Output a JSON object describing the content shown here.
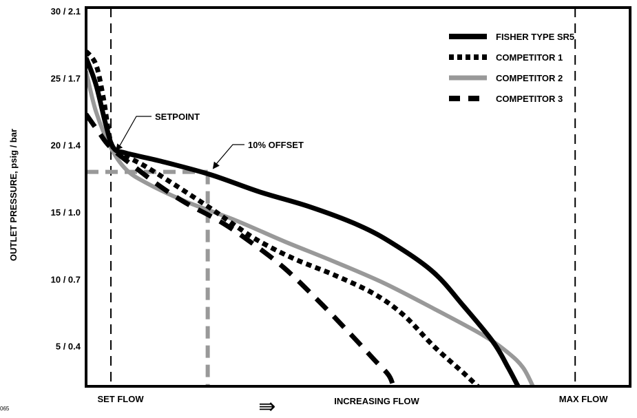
{
  "figure_id": "065",
  "chart_data": {
    "type": "line",
    "xlabel": "INCREASING FLOW",
    "xlabel_arrow": "⇛",
    "ylabel": "OUTLET PRESSURE, psig / bar",
    "xlim": [
      0,
      100
    ],
    "ylim": [
      2,
      30
    ],
    "yticks": [
      {
        "value": 5,
        "label": "5 / 0.4"
      },
      {
        "value": 10,
        "label": "10 / 0.7"
      },
      {
        "value": 15,
        "label": "15 / 1.0"
      },
      {
        "value": 20,
        "label": "20 / 1.4"
      },
      {
        "value": 25,
        "label": "25 / 1.7"
      },
      {
        "value": 30,
        "label": "30 / 2.1"
      }
    ],
    "xticks": [
      {
        "value": 5,
        "label": "SET FLOW"
      },
      {
        "value": 98.5,
        "label": "MAX FLOW"
      }
    ],
    "reference_lines": {
      "set_flow_x": 5,
      "max_flow_x": 98.5,
      "offset_pressure": 18,
      "offset_flow_x": 24.5
    },
    "annotations": [
      {
        "text": "SETPOINT",
        "points_to": {
          "x": 6,
          "y": 19.6
        }
      },
      {
        "text": "10% OFFSET",
        "points_to": {
          "x": 25.5,
          "y": 18
        }
      }
    ],
    "legend_position": "top-right",
    "series": [
      {
        "name": "FISHER TYPE SR5",
        "color": "#000000",
        "style": "solid",
        "points": [
          [
            0,
            26.5
          ],
          [
            2,
            24.5
          ],
          [
            4,
            21.5
          ],
          [
            5.5,
            19.8
          ],
          [
            8,
            19.4
          ],
          [
            15,
            18.8
          ],
          [
            25,
            17.8
          ],
          [
            35,
            16.5
          ],
          [
            45,
            15.4
          ],
          [
            55,
            14
          ],
          [
            62,
            12.6
          ],
          [
            70,
            10.5
          ],
          [
            76,
            8
          ],
          [
            82,
            5.3
          ],
          [
            85,
            3.4
          ],
          [
            87,
            2
          ]
        ]
      },
      {
        "name": "COMPETITOR 1",
        "color": "#000000",
        "style": "dotted",
        "points": [
          [
            0,
            27
          ],
          [
            2,
            26
          ],
          [
            3.5,
            23.5
          ],
          [
            5,
            20.2
          ],
          [
            7,
            19.4
          ],
          [
            12,
            18.4
          ],
          [
            18,
            17
          ],
          [
            25,
            15.3
          ],
          [
            30,
            14
          ],
          [
            35,
            12.8
          ],
          [
            42,
            11.5
          ],
          [
            50,
            10.3
          ],
          [
            58,
            8.9
          ],
          [
            64,
            7.3
          ],
          [
            70,
            5
          ],
          [
            76,
            3
          ],
          [
            80,
            1.6
          ]
        ]
      },
      {
        "name": "COMPETITOR 2",
        "color": "#999999",
        "style": "solid",
        "points": [
          [
            0,
            25.5
          ],
          [
            2,
            22.5
          ],
          [
            5,
            19.8
          ],
          [
            8,
            18.2
          ],
          [
            12,
            17.2
          ],
          [
            20,
            15.8
          ],
          [
            30,
            14.4
          ],
          [
            40,
            12.8
          ],
          [
            50,
            11.3
          ],
          [
            60,
            9.7
          ],
          [
            70,
            7.8
          ],
          [
            80,
            5.8
          ],
          [
            85,
            4.5
          ],
          [
            88,
            3.4
          ],
          [
            90,
            2
          ]
        ]
      },
      {
        "name": "COMPETITOR 3",
        "color": "#000000",
        "style": "dashed",
        "points": [
          [
            0,
            22.3
          ],
          [
            2.5,
            21
          ],
          [
            5,
            19.8
          ],
          [
            10,
            18.3
          ],
          [
            15,
            16.9
          ],
          [
            20,
            15.7
          ],
          [
            27,
            14.3
          ],
          [
            33,
            12.8
          ],
          [
            40,
            10.8
          ],
          [
            47,
            8.3
          ],
          [
            53,
            6
          ],
          [
            58,
            4
          ],
          [
            61,
            2.8
          ],
          [
            62,
            1.8
          ]
        ]
      }
    ]
  }
}
